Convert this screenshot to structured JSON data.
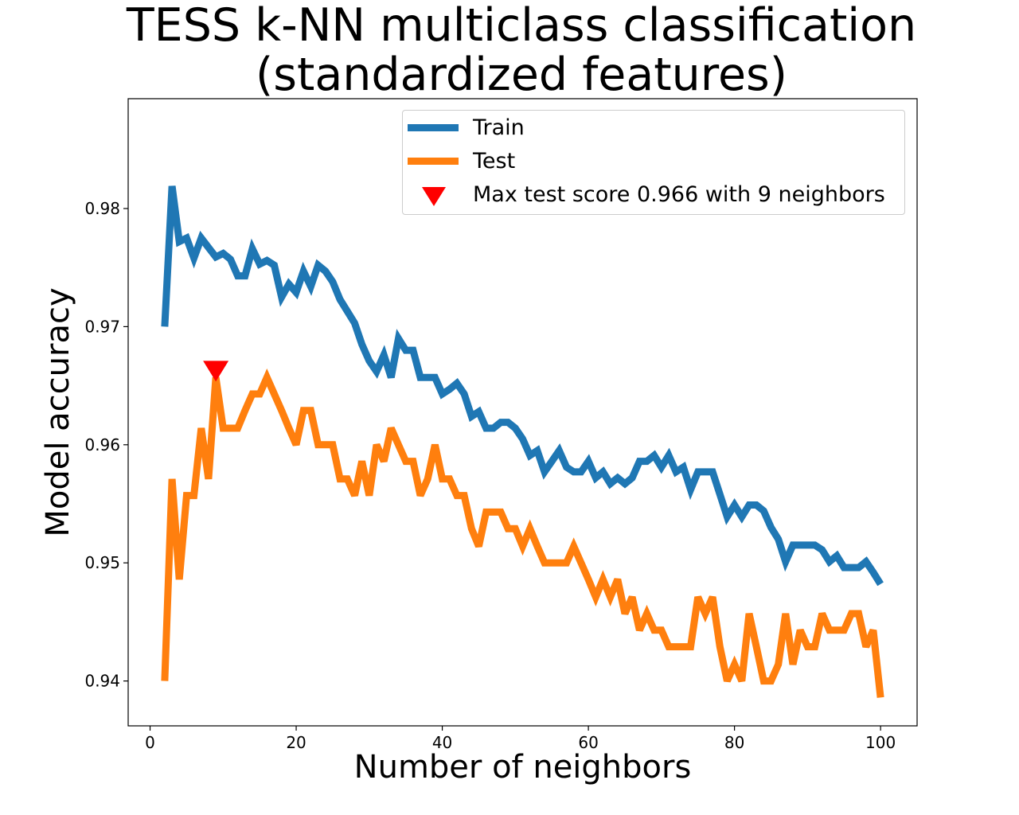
{
  "chart_data": {
    "type": "line",
    "title_lines": [
      "TESS k-NN multiclass classification",
      "(standardized features)"
    ],
    "xlabel": "Number of neighbors",
    "ylabel": "Model accuracy",
    "xlim": [
      -3,
      105
    ],
    "ylim": [
      0.9362,
      0.9893
    ],
    "xticks": [
      0,
      20,
      40,
      60,
      80,
      100
    ],
    "yticks": [
      0.94,
      0.95,
      0.96,
      0.97,
      0.98
    ],
    "xtick_labels": [
      "0",
      "20",
      "40",
      "60",
      "80",
      "100"
    ],
    "ytick_labels": [
      "0.94",
      "0.95",
      "0.96",
      "0.97",
      "0.98"
    ],
    "grid": false,
    "legend_position": "top-right",
    "x": [
      2,
      3,
      4,
      5,
      6,
      7,
      8,
      9,
      10,
      11,
      12,
      13,
      14,
      15,
      16,
      17,
      18,
      19,
      20,
      21,
      22,
      23,
      24,
      25,
      26,
      27,
      28,
      29,
      30,
      31,
      32,
      33,
      34,
      35,
      36,
      37,
      38,
      39,
      40,
      41,
      42,
      43,
      44,
      45,
      46,
      47,
      48,
      49,
      50,
      51,
      52,
      53,
      54,
      55,
      56,
      57,
      58,
      59,
      60,
      61,
      62,
      63,
      64,
      65,
      66,
      67,
      68,
      69,
      70,
      71,
      72,
      73,
      74,
      75,
      76,
      77,
      78,
      79,
      80,
      81,
      82,
      83,
      84,
      85,
      86,
      87,
      88,
      89,
      90,
      91,
      92,
      93,
      94,
      95,
      96,
      97,
      98,
      99,
      100
    ],
    "series": [
      {
        "name": "Train",
        "color": "#1f77b4",
        "values": [
          0.97,
          0.9819,
          0.9772,
          0.9775,
          0.9758,
          0.9775,
          0.9767,
          0.9759,
          0.9762,
          0.9757,
          0.9743,
          0.9743,
          0.9766,
          0.9753,
          0.9756,
          0.9752,
          0.9725,
          0.9736,
          0.9729,
          0.9747,
          0.9734,
          0.9752,
          0.9747,
          0.9738,
          0.9723,
          0.9713,
          0.9703,
          0.9685,
          0.9671,
          0.9662,
          0.9676,
          0.9657,
          0.969,
          0.968,
          0.968,
          0.9657,
          0.9657,
          0.9657,
          0.9643,
          0.9647,
          0.9652,
          0.9643,
          0.9624,
          0.9628,
          0.9614,
          0.9614,
          0.9619,
          0.9619,
          0.9614,
          0.9605,
          0.9591,
          0.9595,
          0.9577,
          0.9586,
          0.9595,
          0.9581,
          0.9577,
          0.9577,
          0.9586,
          0.9572,
          0.9577,
          0.9567,
          0.9572,
          0.9567,
          0.9572,
          0.9586,
          0.9586,
          0.9591,
          0.9581,
          0.9591,
          0.9577,
          0.9581,
          0.9562,
          0.9577,
          0.9577,
          0.9577,
          0.9558,
          0.9539,
          0.9549,
          0.9539,
          0.9549,
          0.9549,
          0.9544,
          0.953,
          0.952,
          0.9501,
          0.9515,
          0.9515,
          0.9515,
          0.9515,
          0.9511,
          0.9501,
          0.9506,
          0.9496,
          0.9496,
          0.9496,
          0.9501,
          0.9492,
          0.9482
        ]
      },
      {
        "name": "Test",
        "color": "#ff7f0e",
        "values": [
          0.94,
          0.9571,
          0.9486,
          0.9557,
          0.9557,
          0.9614,
          0.9571,
          0.9657,
          0.9614,
          0.9614,
          0.9614,
          0.9629,
          0.9643,
          0.9643,
          0.9657,
          0.9643,
          0.9629,
          0.9614,
          0.96,
          0.9629,
          0.9629,
          0.96,
          0.96,
          0.96,
          0.9571,
          0.9571,
          0.9557,
          0.9586,
          0.9557,
          0.96,
          0.9586,
          0.9614,
          0.96,
          0.9586,
          0.9586,
          0.9557,
          0.9571,
          0.96,
          0.9571,
          0.9571,
          0.9557,
          0.9557,
          0.9529,
          0.9514,
          0.9543,
          0.9543,
          0.9543,
          0.9529,
          0.9529,
          0.9514,
          0.9529,
          0.9514,
          0.95,
          0.95,
          0.95,
          0.95,
          0.9514,
          0.95,
          0.9486,
          0.9471,
          0.9486,
          0.9471,
          0.9486,
          0.9457,
          0.9471,
          0.9443,
          0.9457,
          0.9443,
          0.9443,
          0.9429,
          0.9429,
          0.9429,
          0.9429,
          0.9471,
          0.9457,
          0.9471,
          0.9429,
          0.94,
          0.9414,
          0.94,
          0.9457,
          0.9429,
          0.94,
          0.94,
          0.9414,
          0.9457,
          0.9414,
          0.9443,
          0.9429,
          0.9429,
          0.9457,
          0.9443,
          0.9443,
          0.9443,
          0.9457,
          0.9457,
          0.9429,
          0.9443,
          0.9386
        ]
      }
    ],
    "marker": {
      "label": "Max test score 0.966 with 9 neighbors",
      "x": 9,
      "y": 0.9663,
      "color": "#ff0000",
      "shape": "triangle-down"
    }
  }
}
